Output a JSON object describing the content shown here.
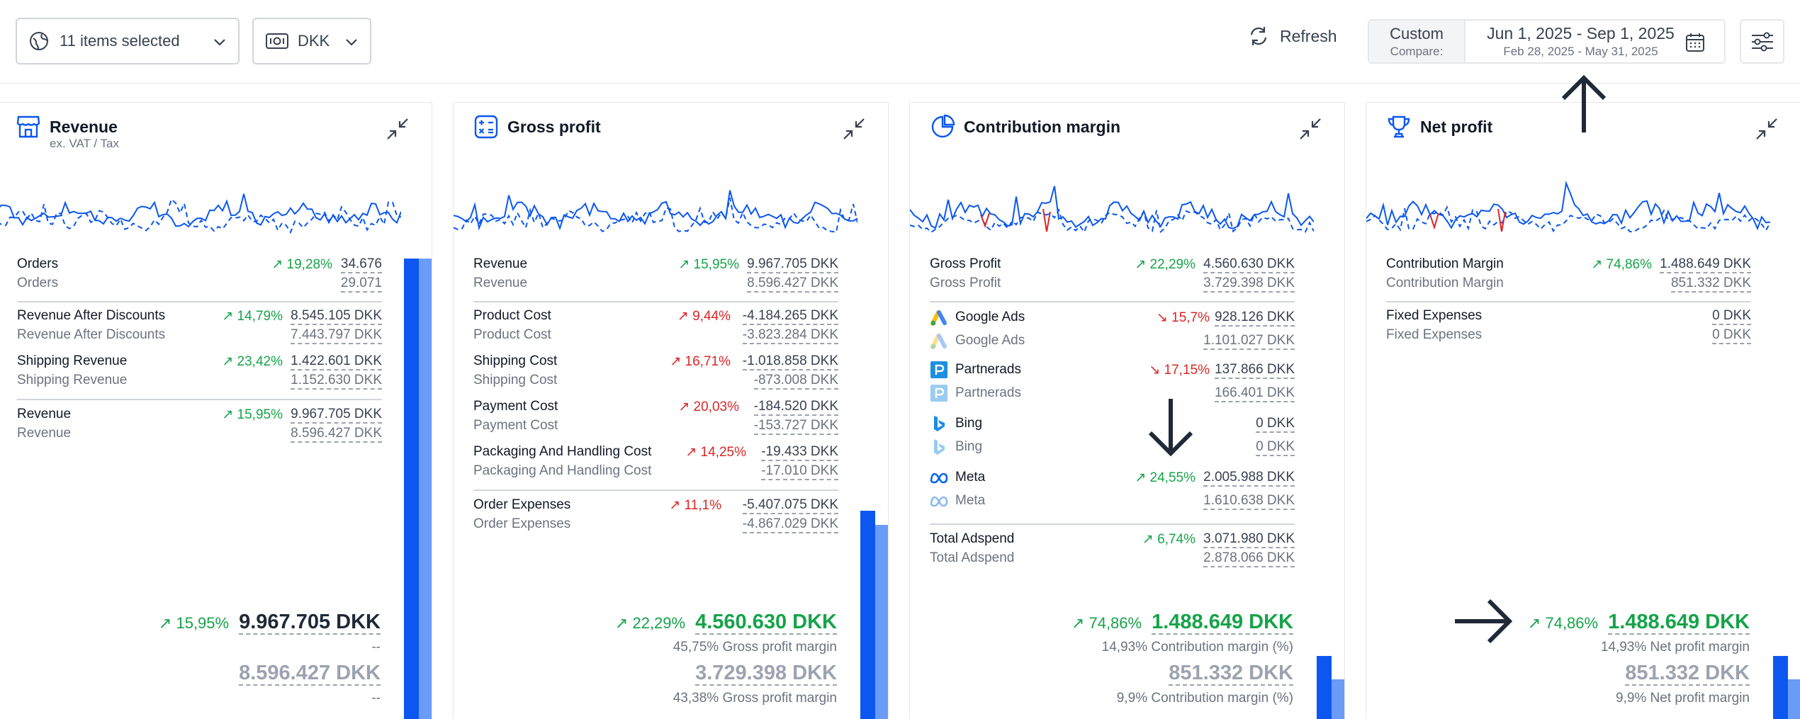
{
  "topbar": {
    "items_selected": "11 items selected",
    "currency": "DKK",
    "refresh": "Refresh",
    "compare_mode": "Custom",
    "compare_label": "Compare:",
    "date_range": "Jun 1, 2025 - Sep 1, 2025",
    "compare_range": "Feb 28, 2025 - May 31, 2025"
  },
  "revenue": {
    "title": "Revenue",
    "subtitle": "ex. VAT / Tax",
    "rows": [
      {
        "label": "Orders",
        "change": "19,28%",
        "dir": "up",
        "current": "34.676",
        "previous": "29.071"
      },
      {
        "label": "Revenue After Discounts",
        "change": "14,79%",
        "dir": "up",
        "current": "8.545.105 DKK",
        "previous": "7.443.797 DKK"
      },
      {
        "label": "Shipping Revenue",
        "change": "23,42%",
        "dir": "up",
        "current": "1.422.601 DKK",
        "previous": "1.152.630 DKK"
      },
      {
        "label": "Revenue",
        "change": "15,95%",
        "dir": "up",
        "current": "9.967.705 DKK",
        "previous": "8.596.427 DKK"
      }
    ],
    "summary": {
      "change": "15,95%",
      "current": "9.967.705 DKK",
      "current_note": "--",
      "previous": "8.596.427 DKK",
      "previous_note": "--"
    },
    "bar_level_current": 1.0,
    "bar_level_previous": 1.0
  },
  "gross": {
    "title": "Gross profit",
    "rows": [
      {
        "label": "Revenue",
        "change": "15,95%",
        "dir": "up",
        "current": "9.967.705 DKK",
        "previous": "8.596.427 DKK"
      },
      {
        "label": "Product Cost",
        "change": "9,44%",
        "dir": "down",
        "current": "-4.184.265 DKK",
        "previous": "-3.823.284 DKK"
      },
      {
        "label": "Shipping Cost",
        "change": "16,71%",
        "dir": "down",
        "current": "-1.018.858 DKK",
        "previous": "-873.008 DKK"
      },
      {
        "label": "Payment Cost",
        "change": "20,03%",
        "dir": "down",
        "current": "-184.520 DKK",
        "previous": "-153.727 DKK"
      },
      {
        "label": "Packaging And Handling Cost",
        "change": "14,25%",
        "dir": "down",
        "current": "-19.433 DKK",
        "previous": "-17.010 DKK"
      },
      {
        "label": "Order Expenses",
        "change": "11,1%",
        "dir": "down",
        "current": "-5.407.075 DKK",
        "previous": "-4.867.029 DKK"
      }
    ],
    "summary": {
      "change": "22,29%",
      "current": "4.560.630 DKK",
      "current_note": "45,75% Gross profit margin",
      "previous": "3.729.398 DKK",
      "previous_note": "43,38% Gross profit margin"
    },
    "bar_level_current": 0.46,
    "bar_level_previous": 0.43
  },
  "contribution": {
    "title": "Contribution margin",
    "rows": [
      {
        "label": "Gross Profit",
        "change": "22,29%",
        "dir": "up",
        "current": "4.560.630 DKK",
        "previous": "3.729.398 DKK"
      }
    ],
    "ads": [
      {
        "label": "Google Ads",
        "icon": "google-ads-icon",
        "change": "15,7%",
        "dir": "down-good",
        "current": "928.126 DKK",
        "previous": "1.101.027 DKK"
      },
      {
        "label": "Partnerads",
        "icon": "partnerads-icon",
        "change": "17,15%",
        "dir": "down-good",
        "current": "137.866 DKK",
        "previous": "166.401 DKK"
      },
      {
        "label": "Bing",
        "icon": "bing-icon",
        "change": "",
        "dir": "",
        "current": "0 DKK",
        "previous": "0 DKK"
      },
      {
        "label": "Meta",
        "icon": "meta-icon",
        "change": "24,55%",
        "dir": "up",
        "current": "2.005.988 DKK",
        "previous": "1.610.638 DKK"
      }
    ],
    "total": {
      "label": "Total Adspend",
      "change": "6,74%",
      "dir": "up",
      "current": "3.071.980 DKK",
      "previous": "2.878.066 DKK"
    },
    "summary": {
      "change": "74,86%",
      "current": "1.488.649 DKK",
      "current_note": "14,93% Contribution margin (%)",
      "previous": "851.332 DKK",
      "previous_note": "9,9% Contribution margin (%)"
    },
    "bar_level_current": 0.15,
    "bar_level_previous": 0.1
  },
  "net": {
    "title": "Net profit",
    "rows": [
      {
        "label": "Contribution Margin",
        "change": "74,86%",
        "dir": "up",
        "current": "1.488.649 DKK",
        "previous": "851.332 DKK"
      },
      {
        "label": "Fixed Expenses",
        "change": "",
        "dir": "",
        "current": "0 DKK",
        "previous": "0 DKK"
      }
    ],
    "summary": {
      "change": "74,86%",
      "current": "1.488.649 DKK",
      "current_note": "14,93% Net profit margin",
      "previous": "851.332 DKK",
      "previous_note": "9,9% Net profit margin"
    },
    "bar_level_current": 0.15,
    "bar_level_previous": 0.1
  },
  "colors": {
    "accent": "#0b57f0",
    "accent_light": "#6a9cf7",
    "positive": "#16a34a",
    "negative": "#dc2626"
  }
}
